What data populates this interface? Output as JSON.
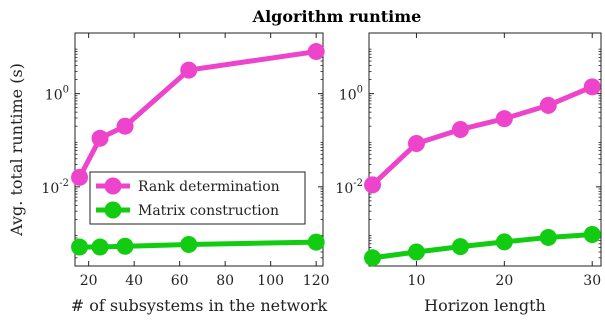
{
  "figure_title": "Algorithm runtime",
  "chart_data": [
    {
      "type": "line",
      "title": "",
      "xlabel": "# of subsystems in the network",
      "ylabel": "Avg. total runtime (s)",
      "xscale": "linear",
      "yscale": "log",
      "xlim": [
        14,
        123
      ],
      "ylim": [
        0.0002,
        20
      ],
      "x_ticks": [
        20,
        40,
        60,
        80,
        100,
        120
      ],
      "y_ticks": [
        0.01,
        1
      ],
      "y_tick_labels": [
        {
          "base": "10",
          "exp": "-2"
        },
        {
          "base": "10",
          "exp": "0"
        }
      ],
      "grid": false,
      "legend": {
        "position": "center-left",
        "entries": [
          "Rank determination",
          "Matrix construction"
        ]
      },
      "series": [
        {
          "name": "Rank determination",
          "color": "#ee44cc",
          "x": [
            16,
            25,
            36,
            64,
            120
          ],
          "y": [
            0.016,
            0.11,
            0.2,
            3.2,
            8.0
          ]
        },
        {
          "name": "Matrix construction",
          "color": "#11cc11",
          "x": [
            16,
            25,
            36,
            64,
            120
          ],
          "y": [
            0.00051,
            0.00051,
            0.00053,
            0.00058,
            0.00065
          ]
        }
      ]
    },
    {
      "type": "line",
      "title": "",
      "xlabel": "Horizon length",
      "ylabel": "",
      "xscale": "linear",
      "yscale": "log",
      "xlim": [
        4.6,
        31
      ],
      "ylim": [
        0.0002,
        20
      ],
      "x_ticks": [
        10,
        20,
        30
      ],
      "y_ticks": [
        0.01,
        1
      ],
      "y_tick_labels": [
        {
          "base": "10",
          "exp": "-2"
        },
        {
          "base": "10",
          "exp": "0"
        }
      ],
      "grid": false,
      "legend": null,
      "series": [
        {
          "name": "Rank determination",
          "color": "#ee44cc",
          "x": [
            5,
            10,
            15,
            20,
            25,
            30
          ],
          "y": [
            0.011,
            0.085,
            0.17,
            0.29,
            0.56,
            1.4
          ]
        },
        {
          "name": "Matrix construction",
          "color": "#11cc11",
          "x": [
            5,
            10,
            15,
            20,
            25,
            30
          ],
          "y": [
            0.0003,
            0.0004,
            0.00052,
            0.00066,
            0.00082,
            0.00095
          ]
        }
      ]
    }
  ]
}
